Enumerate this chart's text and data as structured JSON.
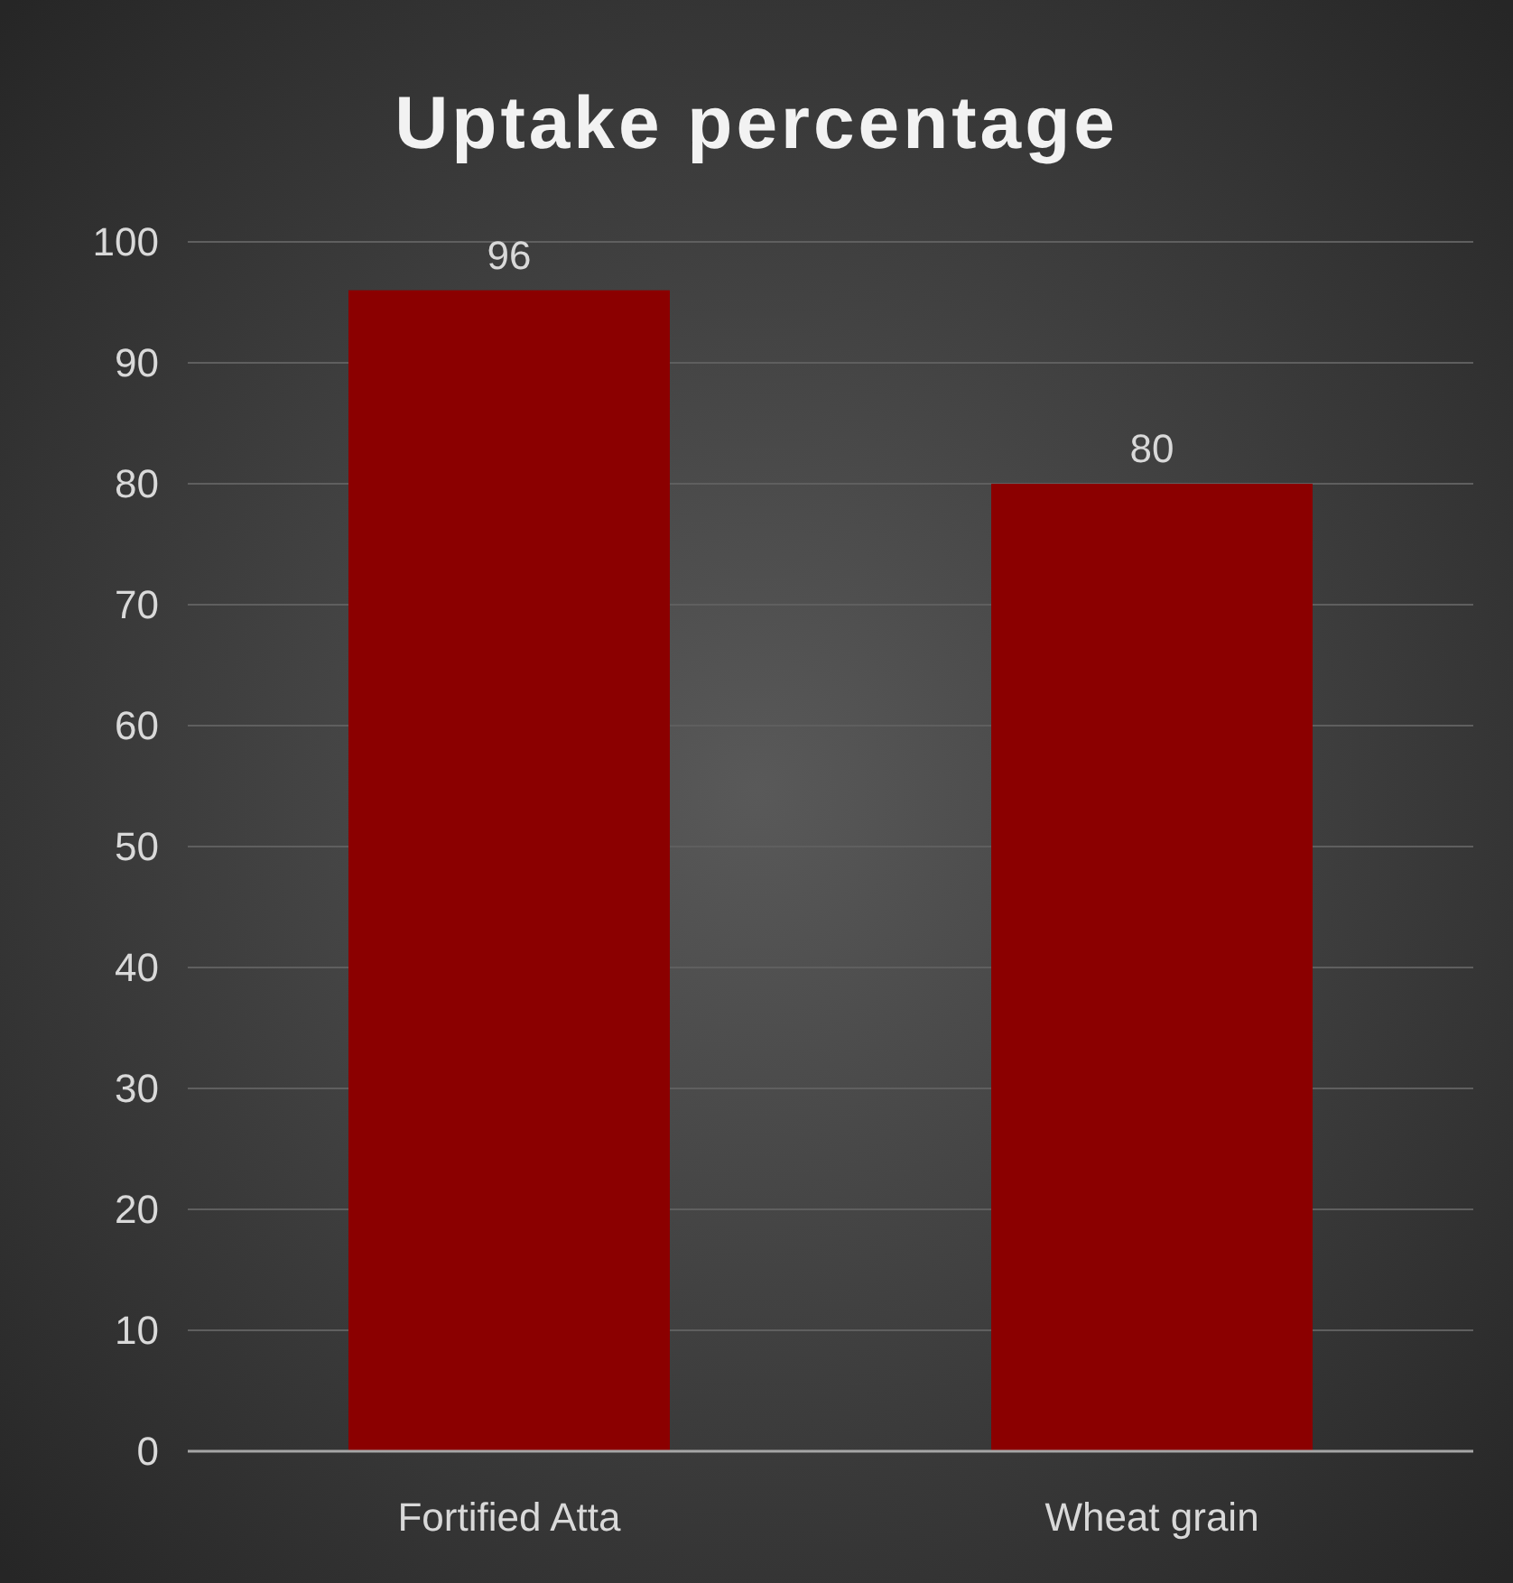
{
  "chart_data": {
    "type": "bar",
    "title": "Uptake percentage",
    "categories": [
      "Fortified Atta",
      "Wheat grain"
    ],
    "values": [
      96,
      80
    ],
    "color": "#8b0000",
    "ylim": [
      0,
      100
    ],
    "yticks": [
      0,
      10,
      20,
      30,
      40,
      50,
      60,
      70,
      80,
      90,
      100
    ],
    "grid": "y",
    "data_labels": true
  }
}
